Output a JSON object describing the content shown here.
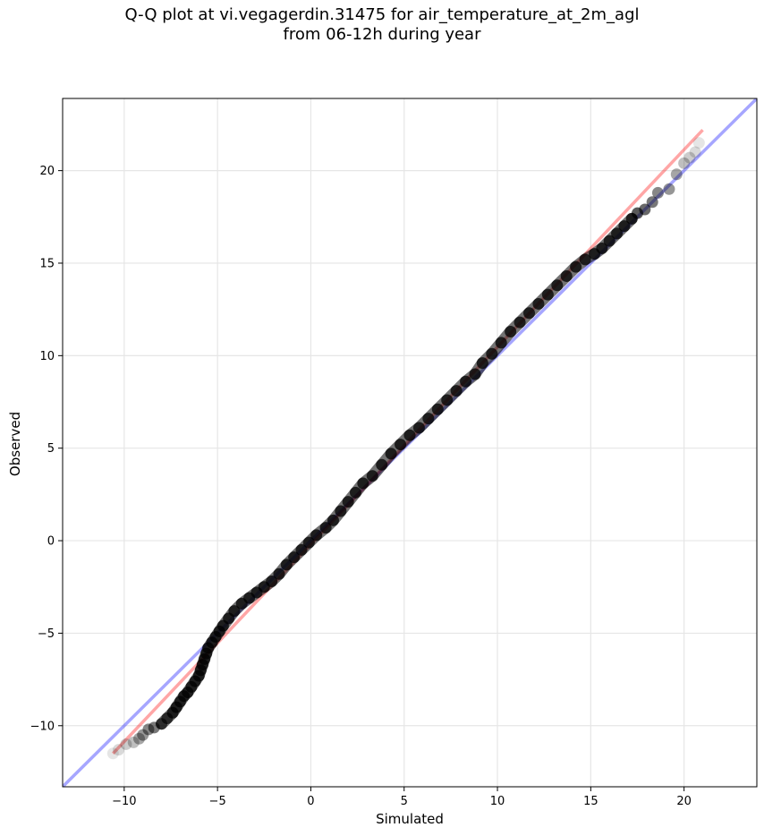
{
  "chart_data": {
    "type": "scatter",
    "title": "Q-Q plot at vi.vegagerdin.31475 for air_temperature_at_2m_agl",
    "subtitle": "from 06-12h during year",
    "xlabel": "Simulated",
    "ylabel": "Observed",
    "xlim": [
      -13.3,
      23.9
    ],
    "ylim": [
      -13.3,
      23.9
    ],
    "xticks": [
      -10,
      -5,
      0,
      5,
      10,
      15,
      20
    ],
    "yticks": [
      -10,
      -5,
      0,
      5,
      10,
      15,
      20
    ],
    "xtick_labels": [
      "−10",
      "−5",
      "0",
      "5",
      "10",
      "15",
      "20"
    ],
    "ytick_labels": [
      "−10",
      "−5",
      "0",
      "5",
      "10",
      "15",
      "20"
    ],
    "grid": true,
    "point_color": "#000000",
    "identity_line_color": "#0000ff",
    "fit_line_color": "#ff0000",
    "quantile_points": [
      [
        -10.6,
        -11.5
      ],
      [
        -10.3,
        -11.3
      ],
      [
        -9.9,
        -11.0
      ],
      [
        -9.5,
        -10.9
      ],
      [
        -9.2,
        -10.7
      ],
      [
        -9.0,
        -10.5
      ],
      [
        -8.7,
        -10.2
      ],
      [
        -8.4,
        -10.1
      ],
      [
        -8.0,
        -9.9
      ],
      [
        -7.7,
        -9.6
      ],
      [
        -7.4,
        -9.3
      ],
      [
        -7.2,
        -9.0
      ],
      [
        -7.0,
        -8.7
      ],
      [
        -6.8,
        -8.4
      ],
      [
        -6.6,
        -8.2
      ],
      [
        -6.4,
        -7.9
      ],
      [
        -6.2,
        -7.6
      ],
      [
        -6.0,
        -7.3
      ],
      [
        -5.9,
        -7.0
      ],
      [
        -5.8,
        -6.7
      ],
      [
        -5.7,
        -6.4
      ],
      [
        -5.6,
        -6.1
      ],
      [
        -5.5,
        -5.8
      ],
      [
        -5.3,
        -5.5
      ],
      [
        -5.1,
        -5.2
      ],
      [
        -4.9,
        -4.9
      ],
      [
        -4.7,
        -4.6
      ],
      [
        -4.4,
        -4.2
      ],
      [
        -4.1,
        -3.8
      ],
      [
        -3.7,
        -3.4
      ],
      [
        -3.3,
        -3.1
      ],
      [
        -2.9,
        -2.8
      ],
      [
        -2.5,
        -2.5
      ],
      [
        -2.1,
        -2.2
      ],
      [
        -1.7,
        -1.8
      ],
      [
        -1.3,
        -1.3
      ],
      [
        -0.9,
        -0.9
      ],
      [
        -0.5,
        -0.5
      ],
      [
        -0.1,
        -0.1
      ],
      [
        0.3,
        0.3
      ],
      [
        0.8,
        0.7
      ],
      [
        1.2,
        1.1
      ],
      [
        1.6,
        1.6
      ],
      [
        2.0,
        2.1
      ],
      [
        2.4,
        2.6
      ],
      [
        2.8,
        3.1
      ],
      [
        3.3,
        3.5
      ],
      [
        3.8,
        4.1
      ],
      [
        4.3,
        4.7
      ],
      [
        4.8,
        5.2
      ],
      [
        5.3,
        5.7
      ],
      [
        5.8,
        6.1
      ],
      [
        6.3,
        6.6
      ],
      [
        6.8,
        7.1
      ],
      [
        7.3,
        7.6
      ],
      [
        7.8,
        8.1
      ],
      [
        8.3,
        8.6
      ],
      [
        8.8,
        9.0
      ],
      [
        9.2,
        9.6
      ],
      [
        9.7,
        10.1
      ],
      [
        10.2,
        10.7
      ],
      [
        10.7,
        11.3
      ],
      [
        11.2,
        11.8
      ],
      [
        11.7,
        12.3
      ],
      [
        12.2,
        12.8
      ],
      [
        12.7,
        13.3
      ],
      [
        13.2,
        13.8
      ],
      [
        13.7,
        14.3
      ],
      [
        14.2,
        14.8
      ],
      [
        14.7,
        15.2
      ],
      [
        15.2,
        15.5
      ],
      [
        15.6,
        15.8
      ],
      [
        16.0,
        16.2
      ],
      [
        16.4,
        16.6
      ],
      [
        16.8,
        17.0
      ],
      [
        17.2,
        17.4
      ],
      [
        17.5,
        17.7
      ],
      [
        17.9,
        17.9
      ],
      [
        18.3,
        18.3
      ],
      [
        18.6,
        18.8
      ],
      [
        19.2,
        19.0
      ],
      [
        19.6,
        19.8
      ],
      [
        20.0,
        20.4
      ],
      [
        20.3,
        20.7
      ],
      [
        20.6,
        21.0
      ],
      [
        20.8,
        21.5
      ]
    ],
    "fit_line": [
      [
        -10.6,
        -11.5
      ],
      [
        21.0,
        22.2
      ]
    ],
    "identity_line": [
      [
        -13.3,
        -13.3
      ],
      [
        23.9,
        23.9
      ]
    ]
  }
}
